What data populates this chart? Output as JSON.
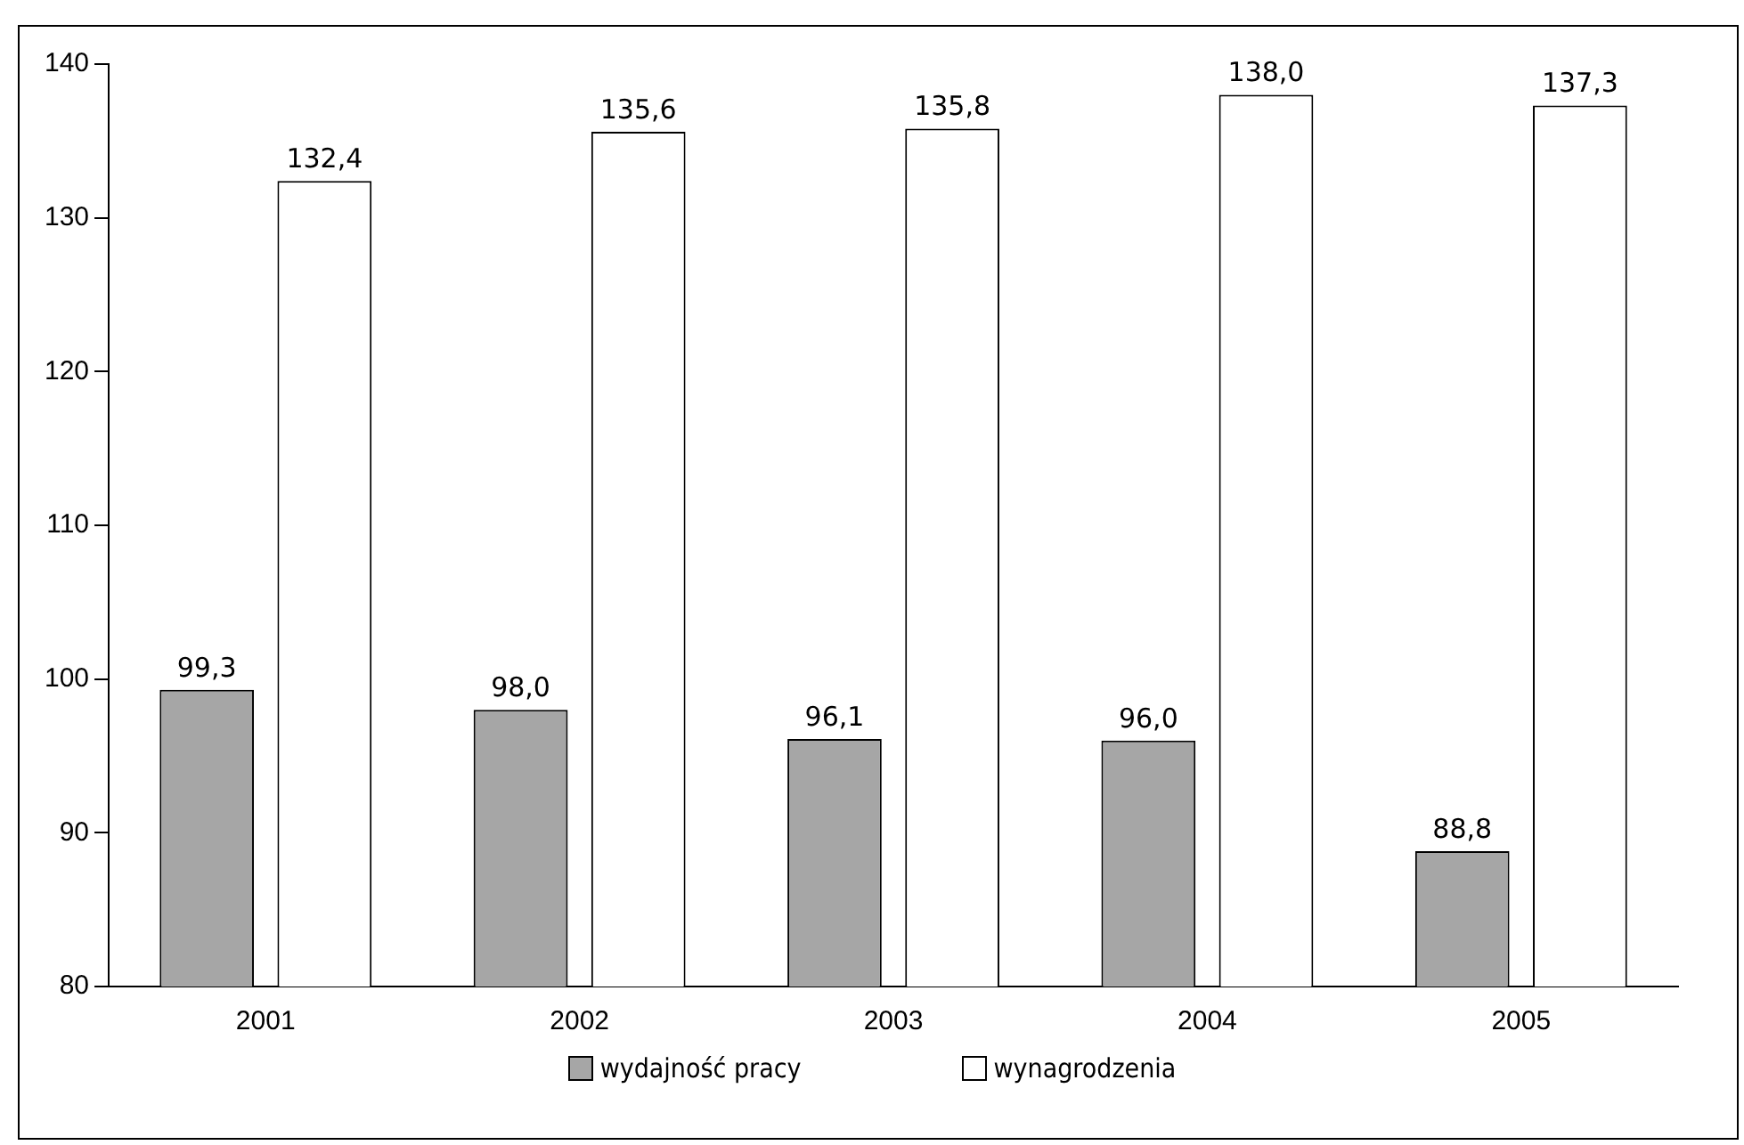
{
  "chart_data": {
    "type": "bar",
    "categories": [
      "2001",
      "2002",
      "2003",
      "2004",
      "2005"
    ],
    "series": [
      {
        "name": "wydajność pracy",
        "color": "#a6a6a6",
        "values": [
          99.3,
          98.0,
          96.1,
          96.0,
          88.8
        ],
        "value_labels": [
          "99,3",
          "98,0",
          "96,1",
          "96,0",
          "88,8"
        ]
      },
      {
        "name": "wynagrodzenia",
        "color": "#ffffff",
        "values": [
          132.4,
          135.6,
          135.8,
          138.0,
          137.3
        ],
        "value_labels": [
          "132,4",
          "135,6",
          "135,8",
          "138,0",
          "137,3"
        ]
      }
    ],
    "ylim": [
      80,
      140
    ],
    "yticks": [
      80,
      90,
      100,
      110,
      120,
      130,
      140
    ],
    "grid": false,
    "legend": "bottom"
  }
}
